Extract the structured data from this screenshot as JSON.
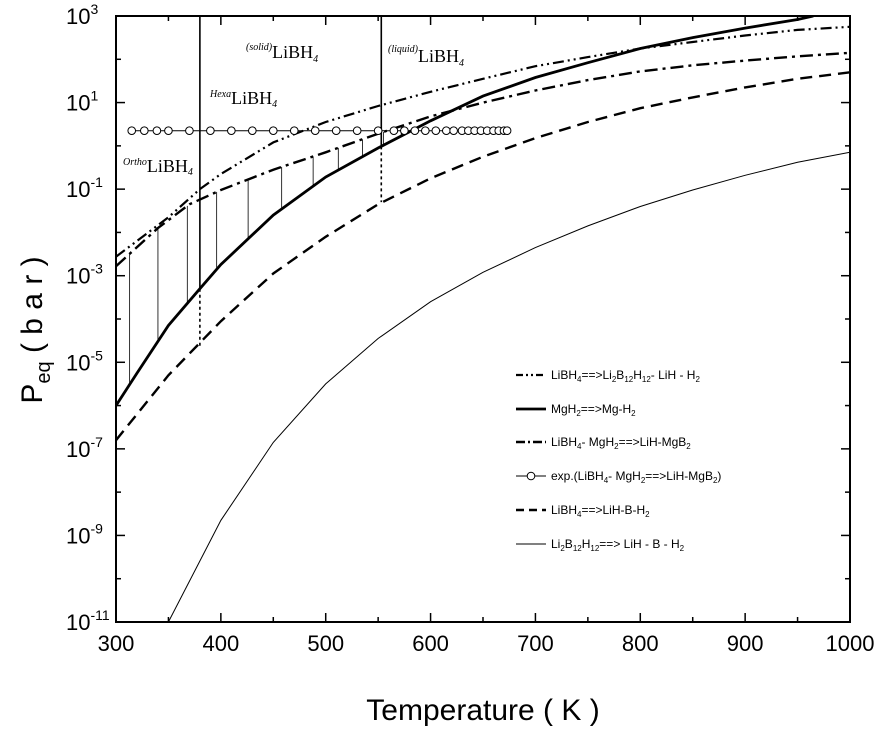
{
  "chart_data": {
    "type": "line",
    "xlabel": "Temperature ( K )",
    "ylabel_main": "P",
    "ylabel_sub": "eq",
    "ylabel_unit": " ( b a r )",
    "xlim": [
      300,
      1000
    ],
    "ylim_log10": [
      -11,
      3
    ],
    "y_scale": "log",
    "x_ticks": [
      300,
      400,
      500,
      600,
      700,
      800,
      900,
      1000
    ],
    "y_ticks": [
      {
        "base": "10",
        "exp": "3"
      },
      {
        "base": "10",
        "exp": "1"
      },
      {
        "base": "10",
        "exp": "-1"
      },
      {
        "base": "10",
        "exp": "-3"
      },
      {
        "base": "10",
        "exp": "-5"
      },
      {
        "base": "10",
        "exp": "-7"
      },
      {
        "base": "10",
        "exp": "-9"
      },
      {
        "base": "10",
        "exp": "-11"
      }
    ],
    "y_tick_exponents": [
      3,
      1,
      -1,
      -3,
      -5,
      -7,
      -9,
      -11
    ],
    "legend_position": "lower-right",
    "legend": [
      {
        "parts": [
          [
            "LiBH",
            ""
          ],
          [
            "4",
            "sub"
          ],
          [
            "==>Li",
            ""
          ],
          [
            "2",
            "sub"
          ],
          [
            "B",
            ""
          ],
          [
            "12",
            "sub"
          ],
          [
            "H",
            ""
          ],
          [
            "12",
            "sub"
          ],
          [
            "- LiH - H",
            ""
          ],
          [
            "2",
            "sub"
          ]
        ],
        "style": "dashdotdot"
      },
      {
        "parts": [
          [
            "MgH",
            ""
          ],
          [
            "2",
            "sub"
          ],
          [
            "==>Mg-H",
            ""
          ],
          [
            "2",
            "sub"
          ]
        ],
        "style": "thick"
      },
      {
        "parts": [
          [
            "LiBH",
            ""
          ],
          [
            "4",
            "sub"
          ],
          [
            "- MgH",
            ""
          ],
          [
            "2",
            "sub"
          ],
          [
            "==>LiH-MgB",
            ""
          ],
          [
            "2",
            "sub"
          ]
        ],
        "style": "dashdot"
      },
      {
        "parts": [
          [
            "exp.(LiBH",
            ""
          ],
          [
            "4",
            "sub"
          ],
          [
            "- MgH",
            ""
          ],
          [
            "2",
            "sub"
          ],
          [
            "==>LiH-MgB",
            ""
          ],
          [
            "2",
            "sub"
          ],
          [
            ")",
            ""
          ]
        ],
        "style": "circles"
      },
      {
        "parts": [
          [
            "LiBH",
            ""
          ],
          [
            "4",
            "sub"
          ],
          [
            "==>LiH-B-H",
            ""
          ],
          [
            "2",
            "sub"
          ]
        ],
        "style": "dashed"
      },
      {
        "parts": [
          [
            "Li",
            ""
          ],
          [
            "2",
            "sub"
          ],
          [
            "B",
            ""
          ],
          [
            "12",
            "sub"
          ],
          [
            "H",
            ""
          ],
          [
            "12",
            "sub"
          ],
          [
            "==> LiH - B - H",
            ""
          ],
          [
            "2",
            "sub"
          ]
        ],
        "style": "thin"
      }
    ],
    "series": [
      {
        "style": "dashdotdot",
        "x": [
          300,
          350,
          380,
          400,
          450,
          500,
          550,
          600,
          650,
          700,
          750,
          800,
          850,
          900,
          950,
          1000
        ],
        "log10_y": [
          -2.56,
          -1.65,
          -1.0,
          -0.65,
          0.08,
          0.55,
          0.92,
          1.25,
          1.55,
          1.84,
          2.05,
          2.25,
          2.4,
          2.55,
          2.68,
          2.75
        ]
      },
      {
        "style": "thick",
        "x": [
          300,
          320,
          350,
          380,
          400,
          450,
          500,
          550,
          600,
          650,
          700,
          750,
          800,
          850,
          900,
          950,
          965
        ],
        "log10_y": [
          -6.0,
          -5.25,
          -4.15,
          -3.3,
          -2.74,
          -1.6,
          -0.72,
          -0.05,
          0.58,
          1.15,
          1.58,
          1.92,
          2.25,
          2.5,
          2.72,
          2.92,
          3.0
        ]
      },
      {
        "style": "dashdot",
        "x": [
          300,
          340,
          370,
          400,
          450,
          500,
          550,
          600,
          650,
          700,
          750,
          800,
          850,
          900,
          950,
          1000
        ],
        "log10_y": [
          -2.78,
          -1.9,
          -1.35,
          -1.02,
          -0.55,
          -0.15,
          0.28,
          0.68,
          1.0,
          1.28,
          1.52,
          1.72,
          1.86,
          1.97,
          2.07,
          2.15
        ]
      },
      {
        "style": "dashed",
        "x": [
          300,
          350,
          400,
          450,
          500,
          550,
          600,
          650,
          700,
          750,
          800,
          850,
          900,
          950,
          1000
        ],
        "log10_y": [
          -6.8,
          -5.3,
          -4.05,
          -2.95,
          -2.1,
          -1.35,
          -0.75,
          -0.25,
          0.18,
          0.55,
          0.87,
          1.12,
          1.35,
          1.55,
          1.7
        ]
      },
      {
        "style": "thin",
        "x": [
          350,
          400,
          450,
          500,
          550,
          600,
          650,
          700,
          750,
          800,
          850,
          900,
          950,
          1000
        ],
        "log10_y": [
          -11.0,
          -8.65,
          -6.85,
          -5.5,
          -4.45,
          -3.6,
          -2.92,
          -2.35,
          -1.85,
          -1.4,
          -1.02,
          -0.68,
          -0.38,
          -0.15
        ]
      },
      {
        "style": "circles",
        "x": [
          315,
          327,
          339,
          350,
          370,
          390,
          410,
          430,
          450,
          470,
          490,
          510,
          530,
          550,
          565,
          575,
          585,
          595,
          605,
          615,
          622,
          630,
          636,
          642,
          648,
          654,
          660,
          665,
          670,
          673
        ],
        "log10_y": [
          0.35,
          0.35,
          0.35,
          0.35,
          0.35,
          0.35,
          0.35,
          0.35,
          0.35,
          0.35,
          0.35,
          0.35,
          0.35,
          0.35,
          0.35,
          0.35,
          0.35,
          0.35,
          0.35,
          0.35,
          0.35,
          0.35,
          0.35,
          0.35,
          0.35,
          0.35,
          0.35,
          0.35,
          0.35,
          0.35
        ]
      }
    ],
    "phase_boundaries": [
      {
        "x": 380,
        "log10_y_bottom": -4.65
      },
      {
        "x": 553,
        "log10_y_bottom": -1.3
      }
    ],
    "hatch_x": [
      313,
      340,
      368,
      396,
      426,
      458,
      488,
      512,
      535,
      555,
      572
    ],
    "phase_labels": [
      {
        "sup": "(solid)",
        "text": "LiBH",
        "sub": "4"
      },
      {
        "sup": "(liquid)",
        "text": "LiBH",
        "sub": "4"
      },
      {
        "sup": "Hexa",
        "text": "LiBH",
        "sub": "4"
      },
      {
        "sup": "Ortho",
        "text": "LiBH",
        "sub": "4"
      }
    ]
  }
}
